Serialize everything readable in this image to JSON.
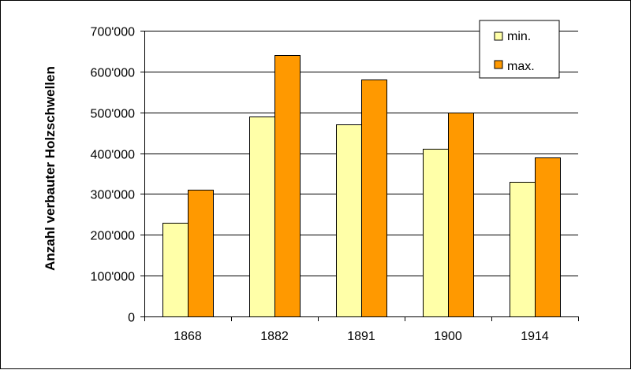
{
  "chart_data": {
    "type": "bar",
    "categories": [
      "1868",
      "1882",
      "1891",
      "1900",
      "1914"
    ],
    "series": [
      {
        "name": "min.",
        "values": [
          230000,
          490000,
          470000,
          410000,
          330000
        ]
      },
      {
        "name": "max.",
        "values": [
          310000,
          640000,
          580000,
          500000,
          390000
        ]
      }
    ],
    "ylabel": "Anzahl verbauter Holzschwellen",
    "xlabel": "",
    "ylim": [
      0,
      700000
    ],
    "yticks": [
      "0",
      "100'000",
      "200'000",
      "300'000",
      "400'000",
      "500'000",
      "600'000",
      "700'000"
    ],
    "grid": true,
    "legend_position": "top-right",
    "colors": {
      "min.": "#FFFFA8",
      "max.": "#FF9900",
      "gridline": "#000000",
      "bar_outline": "#000000"
    }
  }
}
